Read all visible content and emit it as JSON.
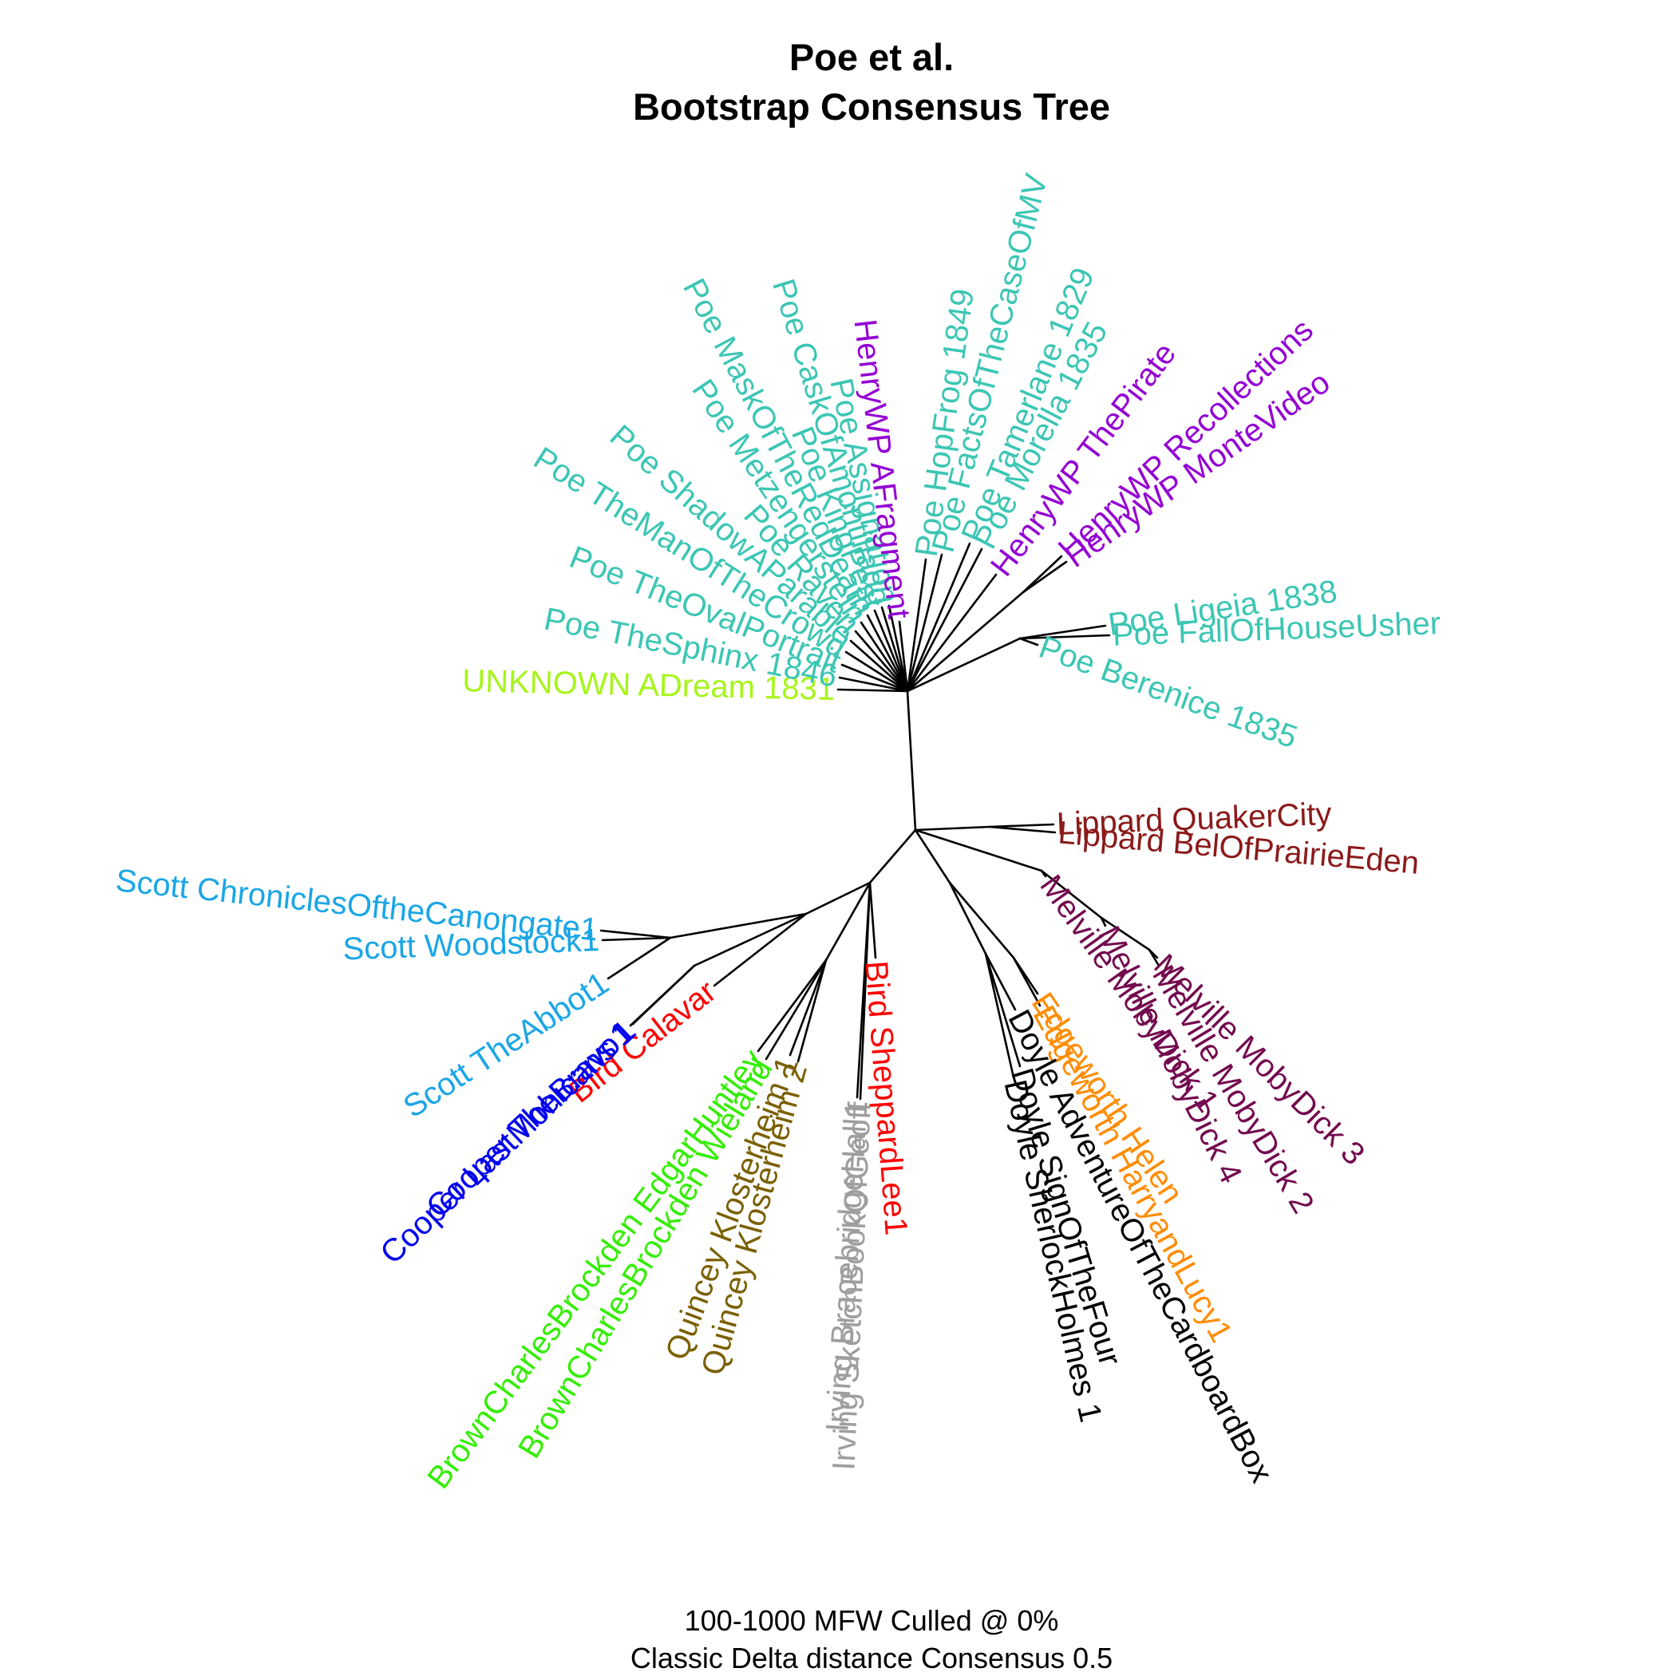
{
  "title": {
    "line1": "Poe et al.",
    "line2": "Bootstrap Consensus Tree"
  },
  "caption": {
    "line1": "100-1000 MFW  Culled @ 0%",
    "line2": "Classic Delta distance Consensus 0.5"
  },
  "colors": {
    "poe": "#3CC6B4",
    "henry": "#9400D3",
    "unknown": "#A6F51A",
    "lippard": "#8B1A1A",
    "melville": "#730A4E",
    "edgeworth": "#FF8C00",
    "doyle": "#000000",
    "irving": "#9E9E9E",
    "bird": "#FF0000",
    "quincey": "#7A6000",
    "brown": "#33EE00",
    "cooper": "#0000EE",
    "scott": "#1AA6E6"
  },
  "tree": {
    "type": "unrooted bootstrap consensus tree",
    "leaves": [
      "UNKNOWN ADream 1831",
      "Poe TheSphinx 1846",
      "Poe TheOvalPortrait",
      "Poe TheManOfTheCrowd",
      "Poe ShadowAParable",
      "Poe Raven",
      "Poe MetzengersteIn",
      "Poe MaskOfTheRedDeath",
      "Poe KingPest",
      "Poe CaskOfAmontillado",
      "Poe Assignation",
      "HenryWP AFragment",
      "Poe HopFrog 1849",
      "Poe FactsOfTheCaseOfMV",
      "Poe Tamerlane 1829",
      "Poe Morella 1835",
      "HenryWP ThePirate",
      "HenryWP Recollections",
      "HenryWP MonteVideo",
      "Poe Berenice 1835",
      "Poe Ligeia 1838",
      "Poe FallOfHouseUsher",
      "Lippard QuakerCity",
      "Lippard BelOfPrairieEden",
      "Melville MobyDick 1",
      "Melville MobyDick 4",
      "Melville MobyDick 3",
      "Melville MobyDick 2",
      "Edgeworth Helen",
      "Edgeworth HarryandLucy1",
      "Doyle AdventureOfTheCardboardBox",
      "Doyle SignOfTheFour",
      "Doyle SherlockHolmes 1",
      "Bird SheppardLee1",
      "Irving SketchBookOfGeoff",
      "Irving BracebridgeHall1",
      "Quincey Klosterheim 2",
      "Quincey Klosterheim 1",
      "BrownCharlesBrockden Wieland",
      "BrownCharlesBrockden EdgarHuntley",
      "Bird Calavar",
      "Cooper TheBravo1",
      "Cooper LastMohicans 1",
      "Scott TheAbbot1",
      "Scott Woodstock1",
      "Scott ChroniclesOftheCanongate1"
    ]
  }
}
